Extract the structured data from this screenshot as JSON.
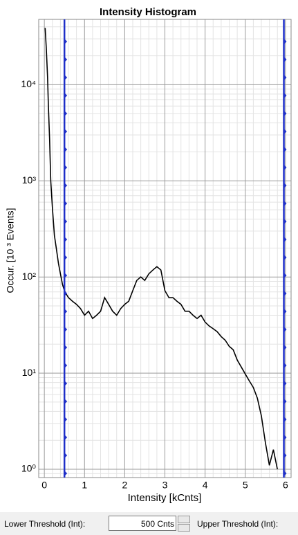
{
  "chart_data": {
    "type": "line",
    "title": "Intensity Histogram",
    "x_label": "Intensity [kCnts]",
    "y_label": "Occur. [10 ³ Events]",
    "log_y": true,
    "grid": true,
    "minor_grid": true,
    "xlim": [
      -0.14,
      6.14
    ],
    "ylim": [
      0.82,
      47800
    ],
    "xticks": [
      0,
      1,
      2,
      3,
      4,
      5,
      6
    ],
    "yticks": [
      {
        "value": 1,
        "label": "10⁰"
      },
      {
        "value": 10,
        "label": "10¹"
      },
      {
        "value": 100,
        "label": "10²"
      },
      {
        "value": 1000,
        "label": "10³"
      },
      {
        "value": 10000,
        "label": "10⁴"
      }
    ],
    "thresholds": [
      0.5,
      5.96
    ],
    "threshold_color": "#1f2fc8",
    "series": [
      {
        "color": "#000000",
        "x": [
          0.02,
          0.05,
          0.08,
          0.1,
          0.13,
          0.16,
          0.2,
          0.25,
          0.3,
          0.35,
          0.4,
          0.45,
          0.5,
          0.55,
          0.6,
          0.7,
          0.8,
          0.9,
          1.0,
          1.1,
          1.2,
          1.3,
          1.4,
          1.5,
          1.6,
          1.7,
          1.8,
          1.9,
          2.0,
          2.1,
          2.2,
          2.3,
          2.4,
          2.5,
          2.6,
          2.7,
          2.8,
          2.9,
          3.0,
          3.1,
          3.2,
          3.3,
          3.4,
          3.5,
          3.6,
          3.7,
          3.8,
          3.9,
          4.0,
          4.1,
          4.2,
          4.3,
          4.4,
          4.5,
          4.6,
          4.7,
          4.8,
          4.9,
          5.0,
          5.1,
          5.2,
          5.3,
          5.4,
          5.5,
          5.6,
          5.7,
          5.8
        ],
        "values": [
          39000,
          23600,
          12000,
          6300,
          2750,
          1000,
          525,
          270,
          195,
          139,
          108,
          84,
          72,
          66,
          61,
          56,
          52,
          47,
          40,
          44,
          37,
          40,
          44,
          61,
          52,
          44,
          40,
          47,
          52,
          56,
          72,
          92,
          100,
          92,
          108,
          118,
          128,
          118,
          72,
          61,
          61,
          56,
          52,
          44,
          44,
          40,
          37,
          40,
          34,
          31,
          29,
          27,
          24,
          22,
          19,
          17.5,
          13.7,
          11.6,
          9.8,
          8.3,
          7.1,
          5.5,
          3.6,
          1.9,
          1.1,
          1.6,
          1
        ]
      }
    ]
  },
  "controls": {
    "lower_label": "Lower Threshold (Int):",
    "lower_value": "500 Cnts",
    "upper_label": "Upper Threshold (Int):"
  }
}
